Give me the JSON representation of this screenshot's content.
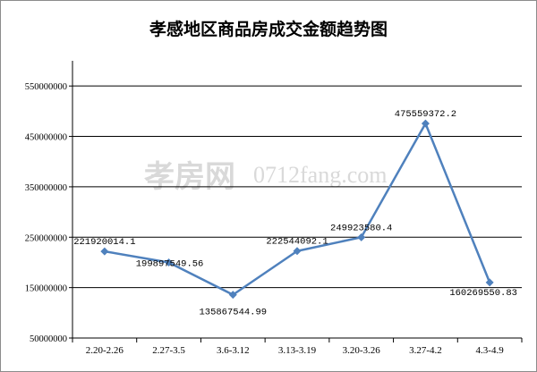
{
  "chart_data": {
    "type": "line",
    "title": "孝感地区商品房成交金额趋势图",
    "categories": [
      "2.20-2.26",
      "2.27-3.5",
      "3.6-3.12",
      "3.13-3.19",
      "3.20-3.26",
      "3.27-4.2",
      "4.3-4.9"
    ],
    "values": [
      221920014.1,
      199897549.56,
      135867544.99,
      222544092.1,
      249923580.4,
      475559372.2,
      160269550.83
    ],
    "data_labels": [
      "221920014.1",
      "199897549.56",
      "135867544.99",
      "222544092.1",
      "249923580.4",
      "475559372.2",
      "160269550.83"
    ],
    "y_ticks": [
      50000000,
      150000000,
      250000000,
      350000000,
      450000000,
      550000000
    ],
    "y_tick_labels": [
      "50000000",
      "150000000",
      "250000000",
      "350000000",
      "450000000",
      "550000000"
    ],
    "ylim": [
      50000000,
      600000000
    ],
    "xlabel": "",
    "ylabel": "",
    "grid": true,
    "legend": "none",
    "colors": {
      "line": "#4f81bd",
      "grid": "#000000"
    }
  },
  "watermark": {
    "cn": "孝房网",
    "en": "0712fang.com"
  }
}
